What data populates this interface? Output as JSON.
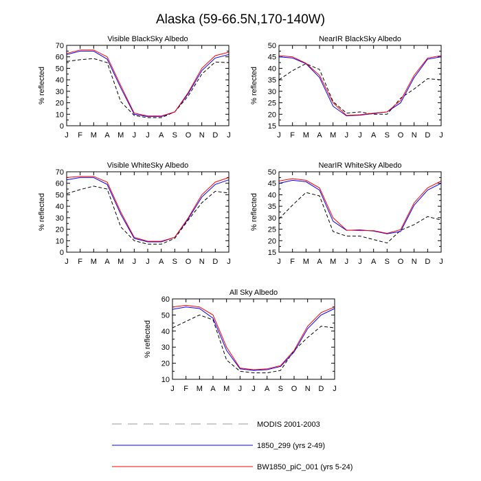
{
  "page_title": "Alaska (59-66.5N,170-140W)",
  "legend": [
    {
      "label": "MODIS 2001-2003",
      "color": "#000000",
      "dash": true
    },
    {
      "label": "1850_299 (yrs 2-49)",
      "color": "#0000ff",
      "dash": false
    },
    {
      "label": "BW1850_piC_001 (yrs 5-24)",
      "color": "#ff0000",
      "dash": false
    }
  ],
  "chart_data": [
    {
      "type": "line",
      "title": "Visible BlackSky Albedo",
      "ylabel": "% reflected",
      "categories": [
        "J",
        "F",
        "M",
        "A",
        "M",
        "J",
        "J",
        "A",
        "S",
        "O",
        "N",
        "D",
        "J"
      ],
      "ylim": [
        0,
        70
      ],
      "yticks": [
        0,
        10,
        20,
        30,
        40,
        50,
        60,
        70
      ],
      "series": [
        {
          "name": "MODIS 2001-2003",
          "color": "#000000",
          "dash": true,
          "values": [
            56,
            57.5,
            58.5,
            55,
            21,
            9,
            7,
            7,
            12,
            26,
            45,
            55.5,
            55
          ]
        },
        {
          "name": "1850_299 (yrs 2-49)",
          "color": "#0000ff",
          "dash": false,
          "values": [
            62,
            65,
            65,
            58,
            33,
            10,
            8,
            8,
            12,
            28,
            48,
            59,
            62
          ]
        },
        {
          "name": "BW1850_piC_001 (yrs 5-24)",
          "color": "#ff0000",
          "dash": false,
          "values": [
            63,
            66,
            66,
            60,
            35,
            11,
            8.5,
            8.5,
            12,
            29,
            50,
            61,
            64
          ]
        }
      ]
    },
    {
      "type": "line",
      "title": "NearIR BlackSky Albedo",
      "ylabel": "% reflected",
      "categories": [
        "J",
        "F",
        "M",
        "A",
        "M",
        "J",
        "J",
        "A",
        "S",
        "O",
        "N",
        "D",
        "J"
      ],
      "ylim": [
        15,
        50
      ],
      "yticks": [
        15,
        20,
        25,
        30,
        35,
        40,
        45,
        50
      ],
      "series": [
        {
          "name": "MODIS 2001-2003",
          "color": "#000000",
          "dash": true,
          "values": [
            35,
            39,
            42,
            39.5,
            25.5,
            20.5,
            21,
            20,
            20,
            27,
            31,
            35.5,
            35
          ]
        },
        {
          "name": "1850_299 (yrs 2-49)",
          "color": "#0000ff",
          "dash": false,
          "values": [
            45,
            44.5,
            42,
            36,
            23.5,
            19.3,
            19.6,
            20.3,
            21,
            25,
            36,
            44,
            45
          ]
        },
        {
          "name": "BW1850_piC_001 (yrs 5-24)",
          "color": "#ff0000",
          "dash": false,
          "values": [
            45.5,
            45,
            42.2,
            37,
            25,
            19.5,
            19.8,
            20.5,
            21,
            26,
            37,
            44.5,
            45.5
          ]
        }
      ]
    },
    {
      "type": "line",
      "title": "Visible WhiteSky Albedo",
      "ylabel": "% reflected",
      "categories": [
        "J",
        "F",
        "M",
        "A",
        "M",
        "J",
        "J",
        "A",
        "S",
        "O",
        "N",
        "D",
        "J"
      ],
      "ylim": [
        0,
        70
      ],
      "yticks": [
        0,
        10,
        20,
        30,
        40,
        50,
        60,
        70
      ],
      "series": [
        {
          "name": "MODIS 2001-2003",
          "color": "#000000",
          "dash": true,
          "values": [
            51,
            54.5,
            57.5,
            55,
            22,
            10,
            7,
            7,
            12,
            28,
            43,
            53,
            51.5
          ]
        },
        {
          "name": "1850_299 (yrs 2-49)",
          "color": "#0000ff",
          "dash": false,
          "values": [
            63,
            65,
            65,
            59,
            33,
            12,
            9,
            9,
            13,
            29,
            48,
            59,
            63
          ]
        },
        {
          "name": "BW1850_piC_001 (yrs 5-24)",
          "color": "#ff0000",
          "dash": false,
          "values": [
            65,
            66,
            66,
            61,
            35,
            13,
            9.5,
            9.5,
            13,
            30,
            50,
            61,
            65
          ]
        }
      ]
    },
    {
      "type": "line",
      "title": "NearIR WhiteSky Albedo",
      "ylabel": "% reflected",
      "categories": [
        "J",
        "F",
        "M",
        "A",
        "M",
        "J",
        "J",
        "A",
        "S",
        "O",
        "N",
        "D",
        "J"
      ],
      "ylim": [
        15,
        50
      ],
      "yticks": [
        15,
        20,
        25,
        30,
        35,
        40,
        45,
        50
      ],
      "series": [
        {
          "name": "MODIS 2001-2003",
          "color": "#000000",
          "dash": true,
          "values": [
            29.5,
            35.5,
            41,
            39.5,
            24,
            22,
            22,
            20.5,
            19,
            24.5,
            27,
            30.5,
            29
          ]
        },
        {
          "name": "1850_299 (yrs 2-49)",
          "color": "#0000ff",
          "dash": false,
          "values": [
            45,
            46.3,
            45.7,
            42,
            28.5,
            24.5,
            24.7,
            24.2,
            23,
            24,
            35.5,
            42,
            45
          ]
        },
        {
          "name": "BW1850_piC_001 (yrs 5-24)",
          "color": "#ff0000",
          "dash": false,
          "values": [
            46,
            47,
            46.3,
            43,
            30,
            24.6,
            24.4,
            24.4,
            23.2,
            24.8,
            36.5,
            43,
            46
          ]
        }
      ]
    },
    {
      "type": "line",
      "title": "All Sky Albedo",
      "ylabel": "% reflected",
      "categories": [
        "J",
        "F",
        "M",
        "A",
        "M",
        "J",
        "J",
        "A",
        "S",
        "O",
        "N",
        "D",
        "J"
      ],
      "ylim": [
        10,
        60
      ],
      "yticks": [
        10,
        20,
        30,
        40,
        50,
        60
      ],
      "series": [
        {
          "name": "MODIS 2001-2003",
          "color": "#000000",
          "dash": true,
          "values": [
            42,
            46,
            50,
            47,
            22,
            15,
            14,
            14,
            15.5,
            28,
            36,
            43,
            42
          ]
        },
        {
          "name": "1850_299 (yrs 2-49)",
          "color": "#0000ff",
          "dash": false,
          "values": [
            53.5,
            55,
            54,
            48,
            28,
            16.5,
            15.5,
            16,
            18,
            27,
            41.5,
            50,
            54
          ]
        },
        {
          "name": "BW1850_piC_001 (yrs 5-24)",
          "color": "#ff0000",
          "dash": false,
          "values": [
            55,
            56,
            55,
            50,
            30,
            17,
            16,
            16.5,
            18.5,
            28,
            43,
            51.5,
            55
          ]
        }
      ]
    }
  ]
}
